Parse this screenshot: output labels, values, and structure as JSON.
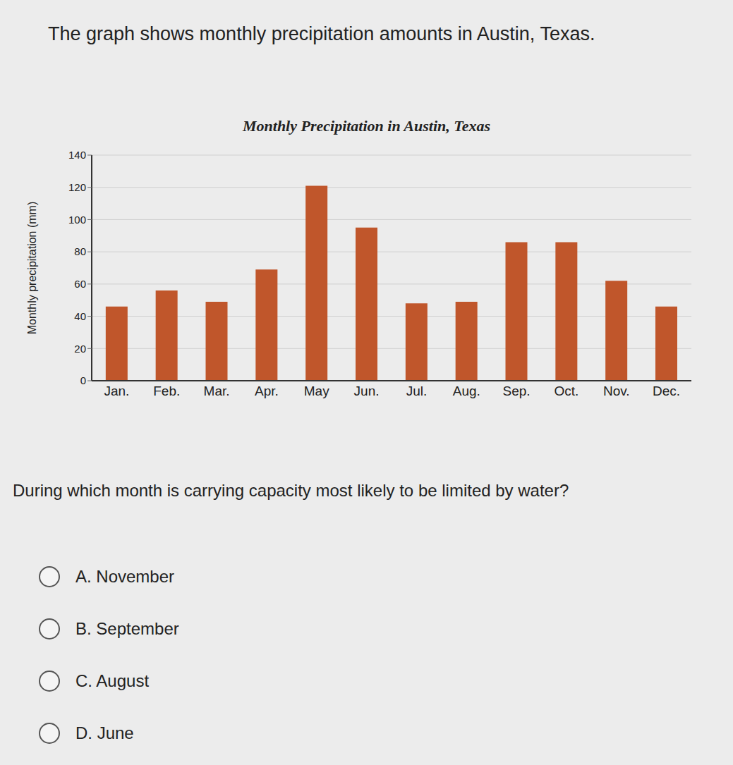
{
  "intro": "The graph shows monthly precipitation amounts in Austin, Texas.",
  "question": "During which month is carrying capacity most likely to be limited by water?",
  "options": [
    "A. November",
    "B. September",
    "C. August",
    "D. June"
  ],
  "chart_data": {
    "type": "bar",
    "title": "Monthly Precipitation in Austin, Texas",
    "y_label": "Monthly precipitation (mm)",
    "categories": [
      "Jan.",
      "Feb.",
      "Mar.",
      "Apr.",
      "May",
      "Jun.",
      "Jul.",
      "Aug.",
      "Sep.",
      "Oct.",
      "Nov.",
      "Dec."
    ],
    "values": [
      46,
      56,
      49,
      69,
      121,
      95,
      48,
      49,
      86,
      86,
      62,
      46
    ],
    "color": "#c0562b",
    "ylim": [
      0,
      140
    ],
    "yticks": [
      0,
      20,
      40,
      60,
      80,
      100,
      120,
      140
    ],
    "grid": true
  }
}
